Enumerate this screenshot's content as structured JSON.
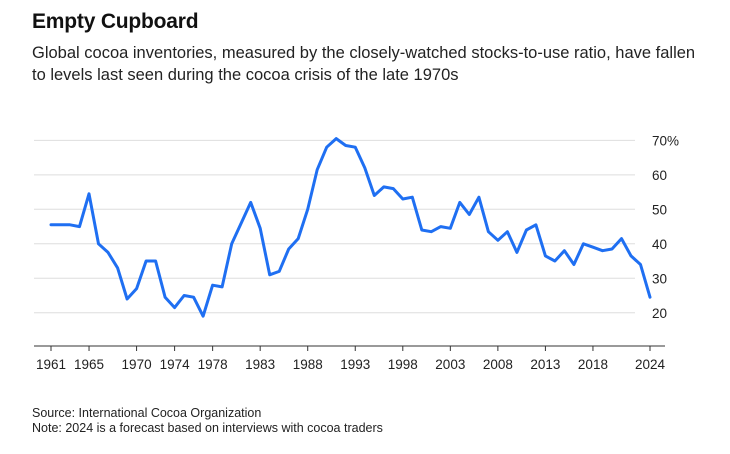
{
  "header": {
    "title": "Empty Cupboard",
    "subtitle": "Global cocoa inventories, measured by the closely-watched stocks-to-use ratio, have fallen to levels last seen during the cocoa crisis of the late 1970s"
  },
  "footer": {
    "source": "Source: International Cocoa Organization",
    "note": "Note: 2024 is a forecast based on interviews with cocoa traders"
  },
  "colors": {
    "line": "#1f6ff2",
    "grid": "#dedede",
    "axis": "#333333"
  },
  "chart_data": {
    "type": "line",
    "title": "Empty Cupboard",
    "xlabel": "",
    "ylabel": "",
    "x_ticks": [
      1961,
      1965,
      1970,
      1974,
      1978,
      1983,
      1988,
      1993,
      1998,
      2003,
      2008,
      2013,
      2018,
      2024
    ],
    "y_ticks": [
      20,
      30,
      40,
      50,
      60,
      70
    ],
    "y_tick_labels": [
      "20",
      "30",
      "40",
      "50",
      "60",
      "70%"
    ],
    "xlim": [
      1960,
      2026
    ],
    "ylim": [
      15,
      73
    ],
    "grid": true,
    "legend": "none",
    "series": [
      {
        "x": [
          1961,
          1962,
          1963,
          1964,
          1965,
          1966,
          1967,
          1968,
          1969,
          1970,
          1971,
          1972,
          1973,
          1974,
          1975,
          1976,
          1977,
          1978,
          1979,
          1980,
          1981,
          1982,
          1983,
          1984,
          1985,
          1986,
          1987,
          1988,
          1989,
          1990,
          1991,
          1992,
          1993,
          1994,
          1995,
          1996,
          1997,
          1998,
          1999,
          2000,
          2001,
          2002,
          2003,
          2004,
          2005,
          2006,
          2007,
          2008,
          2009,
          2010,
          2011,
          2012,
          2013,
          2014,
          2015,
          2016,
          2017,
          2018,
          2019,
          2020,
          2021,
          2022,
          2023,
          2024
        ],
        "values": [
          45.5,
          45.5,
          45.5,
          45,
          54.5,
          40,
          37.5,
          33,
          24,
          27,
          35,
          35,
          24.5,
          21.5,
          25,
          24.5,
          19,
          28,
          27.5,
          40,
          46,
          52,
          44.5,
          31,
          32,
          38.5,
          41.5,
          50,
          61.5,
          68,
          70.5,
          68.5,
          68,
          62,
          54,
          56.5,
          56,
          53,
          53.5,
          44,
          43.5,
          45,
          44.5,
          52,
          48.5,
          53.5,
          43.5,
          41,
          43.5,
          37.5,
          44,
          45.5,
          36.5,
          35,
          38,
          34,
          40,
          39,
          38,
          38.5,
          41.5,
          36.5,
          34,
          24.5
        ]
      }
    ]
  }
}
